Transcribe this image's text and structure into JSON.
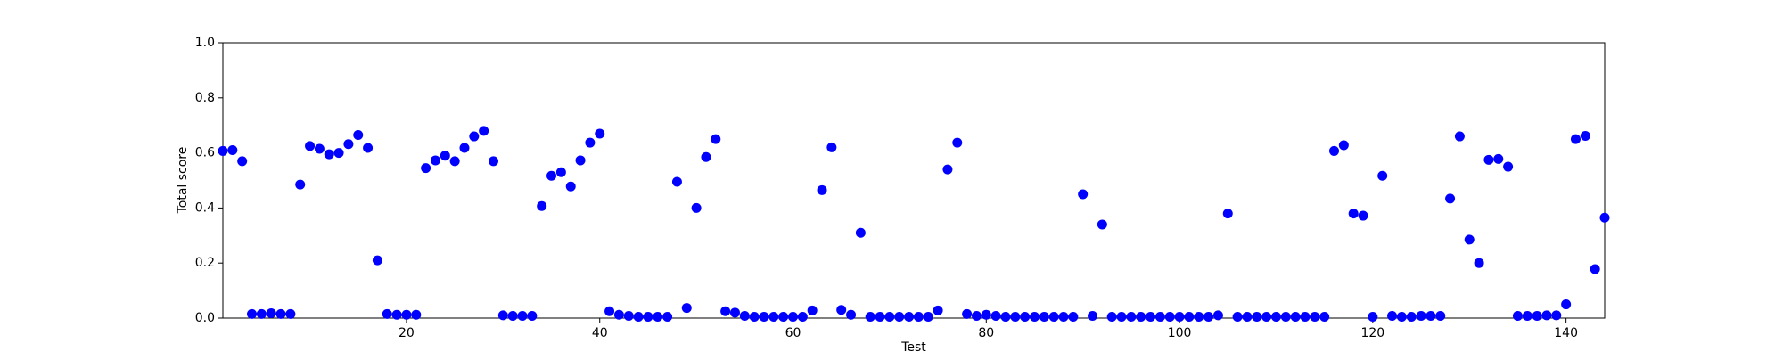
{
  "chart_data": {
    "type": "scatter",
    "xlabel": "Test",
    "ylabel": "Total score",
    "x": [
      1,
      2,
      3,
      4,
      5,
      6,
      7,
      8,
      9,
      10,
      11,
      12,
      13,
      14,
      15,
      16,
      17,
      18,
      19,
      20,
      21,
      22,
      23,
      24,
      25,
      26,
      27,
      28,
      29,
      30,
      31,
      32,
      33,
      34,
      35,
      36,
      37,
      38,
      39,
      40,
      41,
      42,
      43,
      44,
      45,
      46,
      47,
      48,
      49,
      50,
      51,
      52,
      53,
      54,
      55,
      56,
      57,
      58,
      59,
      60,
      61,
      62,
      63,
      64,
      65,
      66,
      67,
      68,
      69,
      70,
      71,
      72,
      73,
      74,
      75,
      76,
      77,
      78,
      79,
      80,
      81,
      82,
      83,
      84,
      85,
      86,
      87,
      88,
      89,
      90,
      91,
      92,
      93,
      94,
      95,
      96,
      97,
      98,
      99,
      100,
      101,
      102,
      103,
      104,
      105,
      106,
      107,
      108,
      109,
      110,
      111,
      112,
      113,
      114,
      115,
      116,
      117,
      118,
      119,
      120,
      121,
      122,
      123,
      124,
      125,
      126,
      127,
      128,
      129,
      130,
      131,
      132,
      133,
      134,
      135,
      136,
      137,
      138,
      139,
      140,
      141,
      142,
      143,
      144
    ],
    "series": [
      {
        "color": "#0000ff",
        "values": [
          0.607,
          0.61,
          0.57,
          0.015,
          0.015,
          0.018,
          0.015,
          0.015,
          0.485,
          0.625,
          0.615,
          0.595,
          0.6,
          0.632,
          0.665,
          0.618,
          0.21,
          0.015,
          0.012,
          0.012,
          0.012,
          0.545,
          0.573,
          0.59,
          0.57,
          0.618,
          0.66,
          0.68,
          0.57,
          0.01,
          0.008,
          0.008,
          0.008,
          0.407,
          0.517,
          0.53,
          0.478,
          0.573,
          0.637,
          0.67,
          0.025,
          0.012,
          0.008,
          0.005,
          0.005,
          0.005,
          0.005,
          0.495,
          0.037,
          0.4,
          0.585,
          0.65,
          0.025,
          0.02,
          0.008,
          0.005,
          0.005,
          0.005,
          0.005,
          0.005,
          0.005,
          0.028,
          0.465,
          0.62,
          0.03,
          0.012,
          0.31,
          0.005,
          0.005,
          0.005,
          0.005,
          0.005,
          0.005,
          0.005,
          0.028,
          0.54,
          0.637,
          0.015,
          0.008,
          0.012,
          0.008,
          0.005,
          0.005,
          0.005,
          0.005,
          0.005,
          0.005,
          0.005,
          0.005,
          0.45,
          0.008,
          0.34,
          0.005,
          0.005,
          0.005,
          0.005,
          0.005,
          0.005,
          0.005,
          0.005,
          0.005,
          0.005,
          0.005,
          0.01,
          0.38,
          0.005,
          0.005,
          0.005,
          0.005,
          0.005,
          0.005,
          0.005,
          0.005,
          0.005,
          0.005,
          0.607,
          0.628,
          0.38,
          0.372,
          0.005,
          0.517,
          0.008,
          0.005,
          0.005,
          0.008,
          0.008,
          0.008,
          0.434,
          0.66,
          0.285,
          0.2,
          0.575,
          0.578,
          0.55,
          0.008,
          0.008,
          0.008,
          0.01,
          0.01,
          0.05,
          0.65,
          0.662,
          0.178,
          0.365
        ]
      }
    ],
    "xlim": [
      1,
      144
    ],
    "ylim": [
      0,
      1
    ],
    "xticks": [
      20,
      40,
      60,
      80,
      100,
      120,
      140
    ],
    "yticks": [
      {
        "value": 0,
        "label": "0.0"
      },
      {
        "value": 0.2,
        "label": "0.2"
      },
      {
        "value": 0.4,
        "label": "0.4"
      },
      {
        "value": 0.6,
        "label": "0.6"
      },
      {
        "value": 0.8,
        "label": "0.8"
      },
      {
        "value": 1,
        "label": "1.0"
      }
    ]
  }
}
